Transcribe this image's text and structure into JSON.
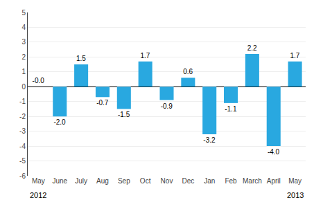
{
  "chart_data": {
    "type": "bar",
    "categories": [
      "May",
      "June",
      "July",
      "Aug",
      "Sep",
      "Oct",
      "Nov",
      "Dec",
      "Jan",
      "Feb",
      "March",
      "April",
      "May"
    ],
    "values": [
      -0.0,
      -2.0,
      1.5,
      -0.7,
      -1.5,
      1.7,
      -0.9,
      0.6,
      -3.2,
      -1.1,
      2.2,
      -4.0,
      1.7
    ],
    "value_labels": [
      "-0.0",
      "-2.0",
      "1.5",
      "-0.7",
      "-1.5",
      "1.7",
      "-0.9",
      "0.6",
      "-3.2",
      "-1.1",
      "2.2",
      "-4.0",
      "1.7"
    ],
    "data_labels": true,
    "color": "#29a8e0",
    "ylim": [
      -6,
      5
    ],
    "yticks": [
      -6,
      -5,
      -4,
      -3,
      -2,
      -1,
      0,
      1,
      2,
      3,
      4,
      5
    ],
    "grid": true,
    "annotations": [
      {
        "text": "2012",
        "x": 0
      },
      {
        "text": "2013",
        "x": 12
      }
    ]
  }
}
